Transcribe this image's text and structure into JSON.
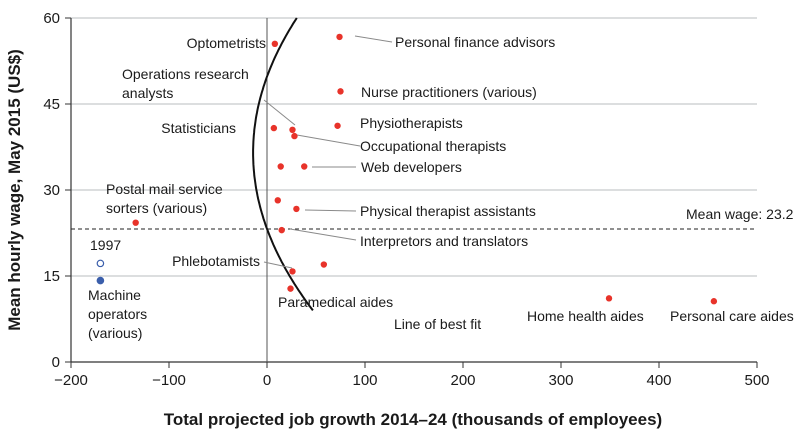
{
  "chart_data": {
    "type": "scatter",
    "xlabel": "Total projected job growth 2014–24 (thousands of employees)",
    "ylabel": "Mean hourly wage, May 2015 (US$)",
    "xlim": [
      -200,
      500
    ],
    "ylim": [
      0,
      60
    ],
    "x_ticks": [
      -200,
      -100,
      0,
      100,
      200,
      300,
      400,
      500
    ],
    "x_tick_labels": [
      "−200",
      "−100",
      "0",
      "100",
      "200",
      "300",
      "400",
      "500"
    ],
    "y_ticks": [
      0,
      15,
      30,
      45,
      60
    ],
    "y_tick_labels": [
      "0",
      "15",
      "30",
      "45",
      "60"
    ],
    "grid": "horizontal at y-ticks",
    "mean_wage": {
      "value": 23.2,
      "label": "Mean wage: 23.2"
    },
    "fit_line": {
      "label": "Line of best fit"
    },
    "colors": {
      "point": "#e8332a",
      "machine": "#3a5eab",
      "grid": "#b8bcbf",
      "text": "#1a1a1a"
    },
    "points": [
      {
        "x": 8,
        "y": 55.5,
        "label": "Optometrists"
      },
      {
        "x": 74,
        "y": 56.7,
        "label": "Personal finance advisors"
      },
      {
        "x": 75,
        "y": 47.2,
        "label": "Nurse practitioners (various)"
      },
      {
        "x": 26,
        "y": 40.5,
        "label": "Operations research analysts"
      },
      {
        "x": 7,
        "y": 40.8,
        "label": "Statisticians"
      },
      {
        "x": 72,
        "y": 41.2,
        "label": "Physiotherapists"
      },
      {
        "x": 28,
        "y": 39.4,
        "label": "Occupational therapists"
      },
      {
        "x": 14,
        "y": 34.1,
        "label": ""
      },
      {
        "x": 38,
        "y": 34.1,
        "label": "Web developers"
      },
      {
        "x": 11,
        "y": 28.2,
        "label": ""
      },
      {
        "x": 30,
        "y": 26.7,
        "label": "Physical therapist assistants"
      },
      {
        "x": -134,
        "y": 24.3,
        "label": "Postal mail service sorters (various)"
      },
      {
        "x": 15,
        "y": 23.0,
        "label": "Interpretors and translators"
      },
      {
        "x": 26,
        "y": 15.8,
        "label": "Phlebotamists"
      },
      {
        "x": 58,
        "y": 17.0,
        "label": ""
      },
      {
        "x": 24,
        "y": 12.8,
        "label": "Paramedical aides"
      },
      {
        "x": 349,
        "y": 11.1,
        "label": "Home health aides"
      },
      {
        "x": 456,
        "y": 10.6,
        "label": "Personal care aides"
      }
    ],
    "machine_operators": {
      "label": "Machine operators (various)",
      "year_label": "1997",
      "points": [
        {
          "x": -170,
          "y": 17.2,
          "open": true
        },
        {
          "x": -170,
          "y": 14.2,
          "open": false
        }
      ]
    }
  },
  "texts": {
    "optometrists": "Optometrists",
    "personal_finance": "Personal finance advisors",
    "ops_line1": "Operations research",
    "ops_line2": "analysts",
    "nurse": "Nurse practitioners (various)",
    "statisticians": "Statisticians",
    "physio": "Physiotherapists",
    "occupational": "Occupational therapists",
    "web": "Web developers",
    "postal_line1": "Postal mail service",
    "postal_line2": "sorters (various)",
    "pta": "Physical therapist assistants",
    "mean_wage": "Mean wage: 23.2",
    "interpreters": "Interpretors and translators",
    "year_1997": "1997",
    "machine_line1": "Machine",
    "machine_line2": "operators",
    "machine_line3": "(various)",
    "phlebotamists": "Phlebotamists",
    "paramedical": "Paramedical aides",
    "line_best_fit": "Line of best fit",
    "home_health": "Home health aides",
    "personal_care": "Personal care aides"
  }
}
